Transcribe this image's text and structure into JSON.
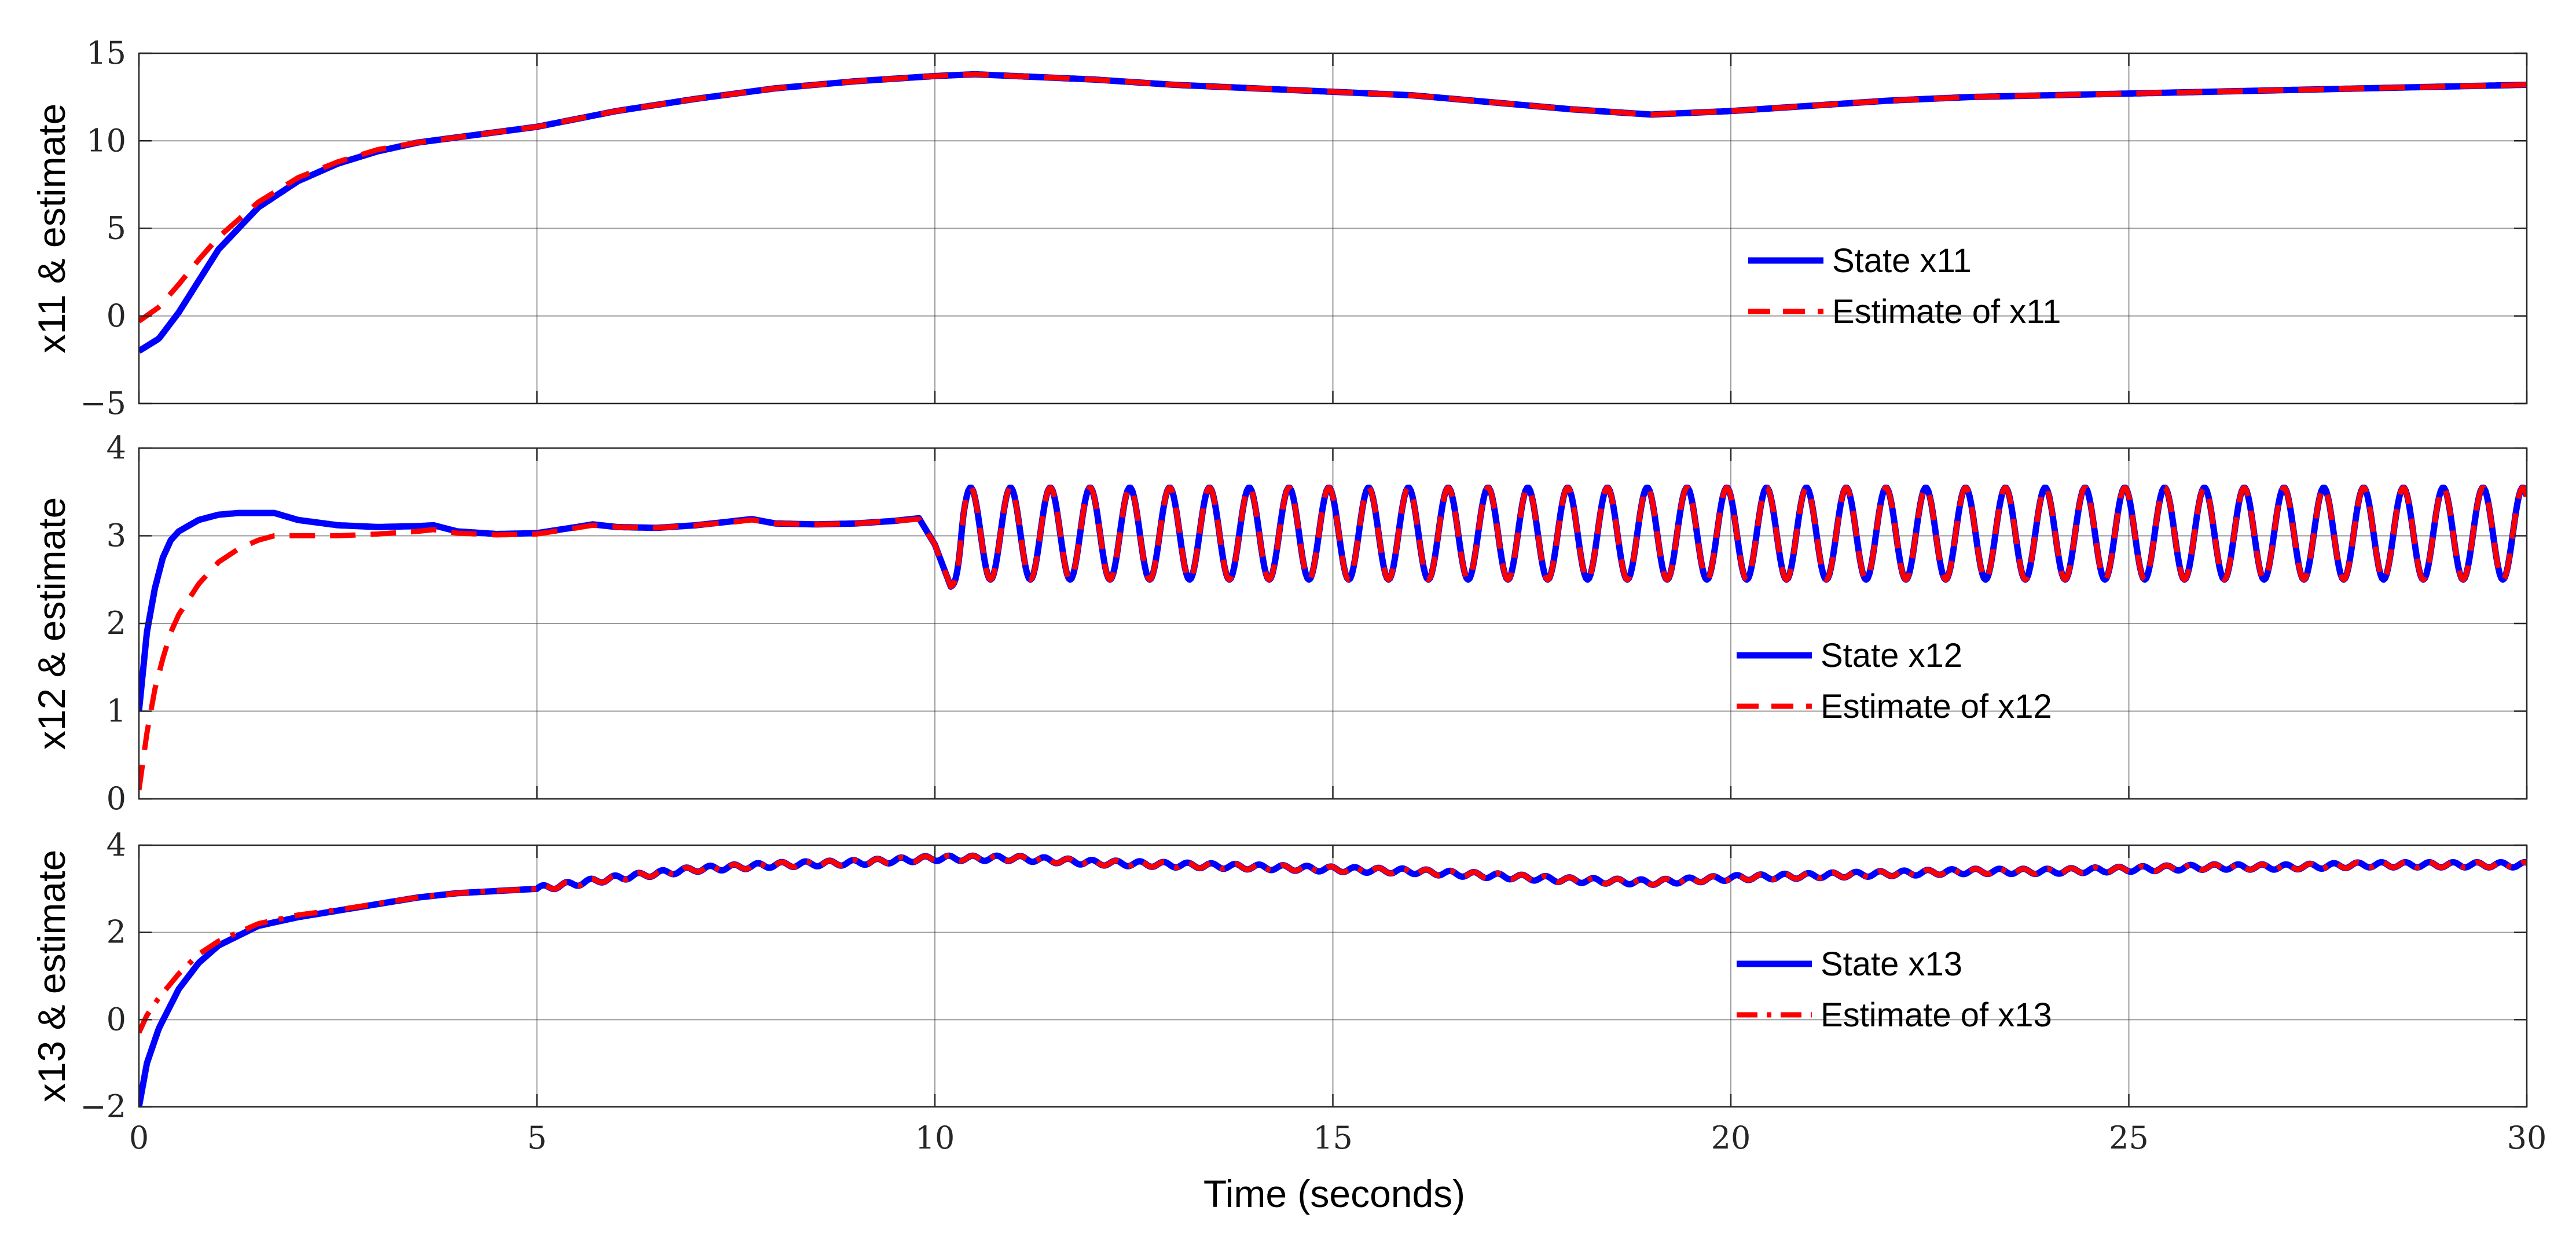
{
  "chart_data": [
    {
      "type": "line",
      "ylabel": "x11 & estimate",
      "xlabel": "",
      "xlim": [
        0,
        30
      ],
      "ylim": [
        -5,
        15
      ],
      "xticks": [
        0,
        5,
        10,
        15,
        20,
        25,
        30
      ],
      "yticks": [
        -5,
        0,
        5,
        10,
        15
      ],
      "ytick_labels": [
        "−5",
        "0",
        "5",
        "10",
        "15"
      ],
      "grid": true,
      "legend_position": "center-right",
      "series": [
        {
          "name": "State x11",
          "color": "#0000ff",
          "style": "solid",
          "x": [
            0,
            0.25,
            0.5,
            0.75,
            1,
            1.5,
            2,
            2.5,
            3,
            3.5,
            4,
            4.5,
            5,
            6,
            7,
            8,
            9,
            10,
            10.5,
            11,
            12,
            13,
            14,
            15,
            16,
            17,
            18,
            19,
            20,
            21,
            22,
            23,
            24,
            25,
            26,
            27,
            28,
            29,
            30
          ],
          "y": [
            -2.0,
            -1.3,
            0.2,
            2.0,
            3.8,
            6.2,
            7.7,
            8.7,
            9.4,
            9.9,
            10.2,
            10.5,
            10.8,
            11.7,
            12.4,
            13.0,
            13.4,
            13.7,
            13.8,
            13.7,
            13.5,
            13.2,
            13.0,
            12.8,
            12.6,
            12.2,
            11.8,
            11.5,
            11.7,
            12.0,
            12.3,
            12.5,
            12.6,
            12.7,
            12.8,
            12.9,
            13.0,
            13.1,
            13.2
          ]
        },
        {
          "name": "Estimate of x11",
          "color": "#ff0000",
          "style": "dashed",
          "x": [
            0,
            0.25,
            0.5,
            0.75,
            1,
            1.5,
            2,
            2.5,
            3,
            3.5,
            4,
            4.5,
            5,
            6,
            7,
            8,
            9,
            10,
            10.5,
            11,
            12,
            13,
            14,
            15,
            16,
            17,
            18,
            19,
            20,
            21,
            22,
            23,
            24,
            25,
            26,
            27,
            28,
            29,
            30
          ],
          "y": [
            -0.3,
            0.5,
            1.8,
            3.2,
            4.5,
            6.5,
            7.9,
            8.8,
            9.5,
            9.9,
            10.2,
            10.5,
            10.8,
            11.7,
            12.4,
            13.0,
            13.4,
            13.7,
            13.8,
            13.7,
            13.5,
            13.2,
            13.0,
            12.8,
            12.6,
            12.2,
            11.8,
            11.5,
            11.7,
            12.0,
            12.3,
            12.5,
            12.6,
            12.7,
            12.8,
            12.9,
            13.0,
            13.1,
            13.2
          ]
        }
      ]
    },
    {
      "type": "line",
      "ylabel": "x12 & estimate",
      "xlabel": "",
      "xlim": [
        0,
        30
      ],
      "ylim": [
        0,
        4
      ],
      "xticks": [
        0,
        5,
        10,
        15,
        20,
        25,
        30
      ],
      "yticks": [
        0,
        1,
        2,
        3,
        4
      ],
      "ytick_labels": [
        "0",
        "1",
        "2",
        "3",
        "4"
      ],
      "grid": true,
      "legend_position": "center-right",
      "annotations": [
        "Oscillation between about 2.5 and 3.55 with period ~0.5 s after t = 10 s"
      ],
      "series": [
        {
          "name": "State x12",
          "color": "#0000ff",
          "style": "solid",
          "x": [
            0,
            0.1,
            0.2,
            0.3,
            0.4,
            0.5,
            0.75,
            1.0,
            1.25,
            1.5,
            1.7,
            2.0,
            2.5,
            3.0,
            3.5,
            3.7,
            4.0,
            4.5,
            5.0,
            5.5,
            5.7,
            6.0,
            6.5,
            7.0,
            7.5,
            7.7,
            8.0,
            8.5,
            9.0,
            9.5,
            9.8,
            10.0,
            10.2
          ],
          "y": [
            1.0,
            1.9,
            2.4,
            2.75,
            2.95,
            3.05,
            3.18,
            3.24,
            3.26,
            3.26,
            3.26,
            3.18,
            3.12,
            3.1,
            3.11,
            3.12,
            3.05,
            3.02,
            3.03,
            3.1,
            3.13,
            3.1,
            3.09,
            3.12,
            3.17,
            3.19,
            3.14,
            3.13,
            3.14,
            3.17,
            3.2,
            2.9,
            2.42
          ],
          "oscillation": {
            "from": 10.2,
            "to": 30,
            "min": 2.5,
            "max": 3.55,
            "period": 0.5
          }
        },
        {
          "name": "Estimate of x12",
          "color": "#ff0000",
          "style": "dashed",
          "x": [
            0,
            0.1,
            0.2,
            0.3,
            0.4,
            0.5,
            0.75,
            1.0,
            1.25,
            1.5,
            1.7,
            2.0,
            2.5,
            3.0,
            3.5,
            3.7,
            4.0,
            4.5,
            5.0,
            5.5,
            5.7,
            6.0,
            6.5,
            7.0,
            7.5,
            7.7,
            8.0,
            8.5,
            9.0,
            9.5,
            9.8,
            10.0,
            10.2
          ],
          "y": [
            0.1,
            0.75,
            1.25,
            1.6,
            1.9,
            2.1,
            2.45,
            2.7,
            2.85,
            2.95,
            3.0,
            3.0,
            3.0,
            3.02,
            3.05,
            3.07,
            3.03,
            3.01,
            3.02,
            3.09,
            3.12,
            3.1,
            3.09,
            3.12,
            3.16,
            3.18,
            3.14,
            3.13,
            3.14,
            3.17,
            3.19,
            2.9,
            2.42
          ],
          "oscillation": {
            "from": 10.2,
            "to": 30,
            "min": 2.5,
            "max": 3.55,
            "period": 0.5
          }
        }
      ]
    },
    {
      "type": "line",
      "ylabel": "x13 & estimate",
      "xlabel": "Time (seconds)",
      "xlim": [
        0,
        30
      ],
      "ylim": [
        -2,
        4
      ],
      "xticks": [
        0,
        5,
        10,
        15,
        20,
        25,
        30
      ],
      "xtick_labels": [
        "0",
        "5",
        "10",
        "15",
        "20",
        "25",
        "30"
      ],
      "yticks": [
        -2,
        0,
        2,
        4
      ],
      "ytick_labels": [
        "−2",
        "0",
        "2",
        "4"
      ],
      "grid": true,
      "legend_position": "center-right",
      "series": [
        {
          "name": "State x13",
          "color": "#0000ff",
          "style": "solid",
          "x": [
            0,
            0.1,
            0.25,
            0.5,
            0.75,
            1,
            1.5,
            2,
            2.5,
            3,
            3.5,
            4,
            5,
            6,
            7,
            8,
            9,
            10,
            11,
            12,
            13,
            14,
            15,
            16,
            17,
            18,
            19,
            20,
            21,
            22,
            23,
            24,
            25,
            26,
            27,
            28,
            29,
            30
          ],
          "y": [
            -2.0,
            -1.0,
            -0.2,
            0.7,
            1.3,
            1.7,
            2.15,
            2.35,
            2.5,
            2.65,
            2.8,
            2.9,
            3.0,
            3.25,
            3.45,
            3.55,
            3.6,
            3.7,
            3.7,
            3.6,
            3.55,
            3.5,
            3.45,
            3.4,
            3.3,
            3.2,
            3.15,
            3.25,
            3.3,
            3.35,
            3.4,
            3.4,
            3.45,
            3.5,
            3.5,
            3.55,
            3.55,
            3.55
          ],
          "ripple": {
            "from": 5,
            "amplitude": 0.06,
            "period": 0.3
          }
        },
        {
          "name": "Estimate of x13",
          "color": "#ff0000",
          "style": "dashdot",
          "x": [
            0,
            0.1,
            0.25,
            0.5,
            0.75,
            1,
            1.5,
            2,
            2.5,
            3,
            3.5,
            4,
            5,
            6,
            7,
            8,
            9,
            10,
            11,
            12,
            13,
            14,
            15,
            16,
            17,
            18,
            19,
            20,
            21,
            22,
            23,
            24,
            25,
            26,
            27,
            28,
            29,
            30
          ],
          "y": [
            -0.3,
            0.1,
            0.5,
            1.05,
            1.5,
            1.8,
            2.2,
            2.4,
            2.52,
            2.66,
            2.8,
            2.9,
            3.0,
            3.25,
            3.45,
            3.55,
            3.6,
            3.7,
            3.7,
            3.6,
            3.55,
            3.5,
            3.45,
            3.4,
            3.3,
            3.2,
            3.15,
            3.25,
            3.3,
            3.35,
            3.4,
            3.4,
            3.45,
            3.5,
            3.5,
            3.55,
            3.55,
            3.55
          ],
          "ripple": {
            "from": 5,
            "amplitude": 0.06,
            "period": 0.3
          }
        }
      ]
    }
  ]
}
